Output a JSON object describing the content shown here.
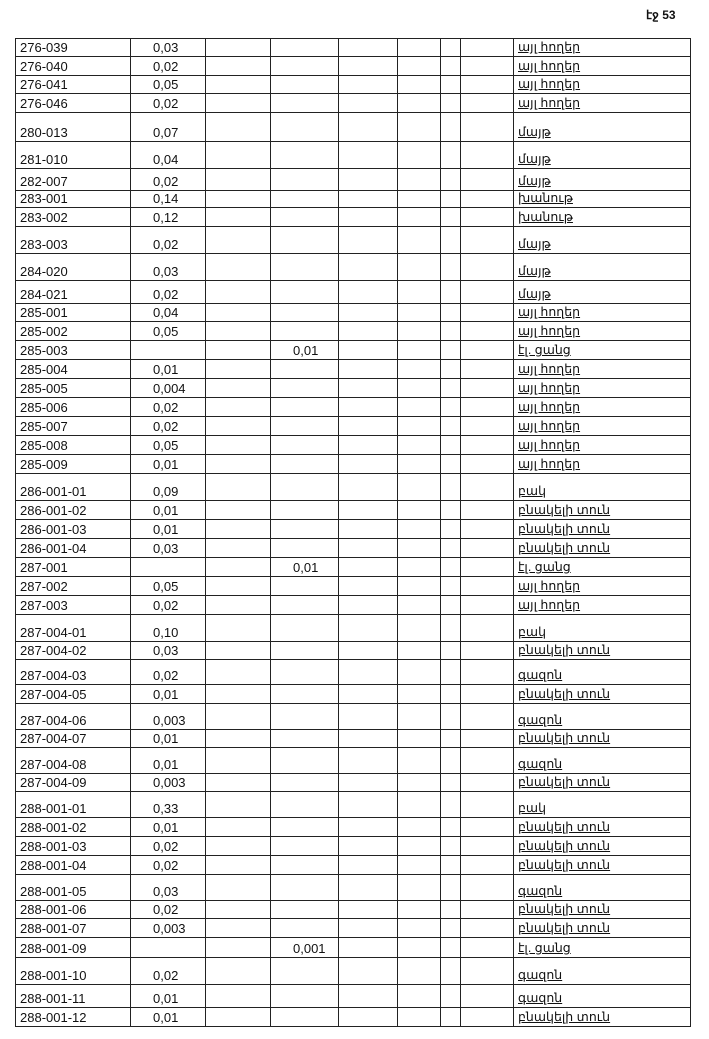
{
  "page_number": "էջ 53",
  "rows": [
    {
      "code": "276-039",
      "area": "0,03",
      "extra": "",
      "type": "այլ հողեր"
    },
    {
      "code": "276-040",
      "area": "0,02",
      "extra": "",
      "type": "այլ հողեր"
    },
    {
      "code": "276-041",
      "area": "0,05",
      "extra": "",
      "type": "այլ հողեր"
    },
    {
      "code": "276-046",
      "area": "0,02",
      "extra": "",
      "type": "այլ հողեր"
    },
    {
      "code": "280-013",
      "area": "0,07",
      "extra": "",
      "type": "մայթ"
    },
    {
      "code": "281-010",
      "area": "0,04",
      "extra": "",
      "type": "մայթ"
    },
    {
      "code": "282-007",
      "area": "0,02",
      "extra": "",
      "type": "մայթ"
    },
    {
      "code": "283-001",
      "area": "0,14",
      "extra": "",
      "type": "խանութ"
    },
    {
      "code": "283-002",
      "area": "0,12",
      "extra": "",
      "type": "խանութ"
    },
    {
      "code": "283-003",
      "area": "0,02",
      "extra": "",
      "type": "մայթ"
    },
    {
      "code": "284-020",
      "area": "0,03",
      "extra": "",
      "type": "մայթ"
    },
    {
      "code": "284-021",
      "area": "0,02",
      "extra": "",
      "type": "մայթ"
    },
    {
      "code": "285-001",
      "area": "0,04",
      "extra": "",
      "type": "այլ հողեր"
    },
    {
      "code": "285-002",
      "area": "0,05",
      "extra": "",
      "type": "այլ հողեր"
    },
    {
      "code": "285-003",
      "area": "",
      "extra": "0,01",
      "type": "էլ. ցանց"
    },
    {
      "code": "285-004",
      "area": "0,01",
      "extra": "",
      "type": "այլ հողեր"
    },
    {
      "code": "285-005",
      "area": "0,004",
      "extra": "",
      "type": "այլ հողեր"
    },
    {
      "code": "285-006",
      "area": "0,02",
      "extra": "",
      "type": "այլ հողեր"
    },
    {
      "code": "285-007",
      "area": "0,02",
      "extra": "",
      "type": "այլ հողեր"
    },
    {
      "code": "285-008",
      "area": "0,05",
      "extra": "",
      "type": "այլ հողեր"
    },
    {
      "code": "285-009",
      "area": "0,01",
      "extra": "",
      "type": "այլ հողեր"
    },
    {
      "code": "286-001-01",
      "area": "0,09",
      "extra": "",
      "type": "բակ"
    },
    {
      "code": "286-001-02",
      "area": "0,01",
      "extra": "",
      "type": "բնակելի տուն"
    },
    {
      "code": "286-001-03",
      "area": "0,01",
      "extra": "",
      "type": "բնակելի տուն"
    },
    {
      "code": "286-001-04",
      "area": "0,03",
      "extra": "",
      "type": "բնակելի տուն"
    },
    {
      "code": "287-001",
      "area": "",
      "extra": "0,01",
      "type": "էլ. ցանց"
    },
    {
      "code": "287-002",
      "area": "0,05",
      "extra": "",
      "type": "այլ հողեր"
    },
    {
      "code": "287-003",
      "area": "0,02",
      "extra": "",
      "type": "այլ հողեր"
    },
    {
      "code": "287-004-01",
      "area": "0,10",
      "extra": "",
      "type": "բակ"
    },
    {
      "code": "287-004-02",
      "area": "0,03",
      "extra": "",
      "type": "բնակելի տուն"
    },
    {
      "code": "287-004-03",
      "area": "0,02",
      "extra": "",
      "type": "գազոն"
    },
    {
      "code": "287-004-05",
      "area": "0,01",
      "extra": "",
      "type": "բնակելի տուն"
    },
    {
      "code": "287-004-06",
      "area": "0,003",
      "extra": "",
      "type": "գազոն"
    },
    {
      "code": "287-004-07",
      "area": "0,01",
      "extra": "",
      "type": "բնակելի տուն"
    },
    {
      "code": "287-004-08",
      "area": "0,01",
      "extra": "",
      "type": "գազոն"
    },
    {
      "code": "287-004-09",
      "area": "0,003",
      "extra": "",
      "type": "բնակելի տուն"
    },
    {
      "code": "288-001-01",
      "area": "0,33",
      "extra": "",
      "type": "բակ"
    },
    {
      "code": "288-001-02",
      "area": "0,01",
      "extra": "",
      "type": "բնակելի տուն"
    },
    {
      "code": "288-001-03",
      "area": "0,02",
      "extra": "",
      "type": "բնակելի տուն"
    },
    {
      "code": "288-001-04",
      "area": "0,02",
      "extra": "",
      "type": "բնակելի տուն"
    },
    {
      "code": "288-001-05",
      "area": "0,03",
      "extra": "",
      "type": "գազոն"
    },
    {
      "code": "288-001-06",
      "area": "0,02",
      "extra": "",
      "type": "բնակելի տուն"
    },
    {
      "code": "288-001-07",
      "area": "0,003",
      "extra": "",
      "type": "բնակելի տուն"
    },
    {
      "code": "288-001-09",
      "area": "",
      "extra": "0,001",
      "type": "էլ. ցանց"
    },
    {
      "code": "288-001-10",
      "area": "0,02",
      "extra": "",
      "type": "գազոն"
    },
    {
      "code": "288-001-11",
      "area": "0,01",
      "extra": "",
      "type": "գազոն"
    },
    {
      "code": "288-001-12",
      "area": "0,01",
      "extra": "",
      "type": "բնակելի տուն"
    }
  ]
}
